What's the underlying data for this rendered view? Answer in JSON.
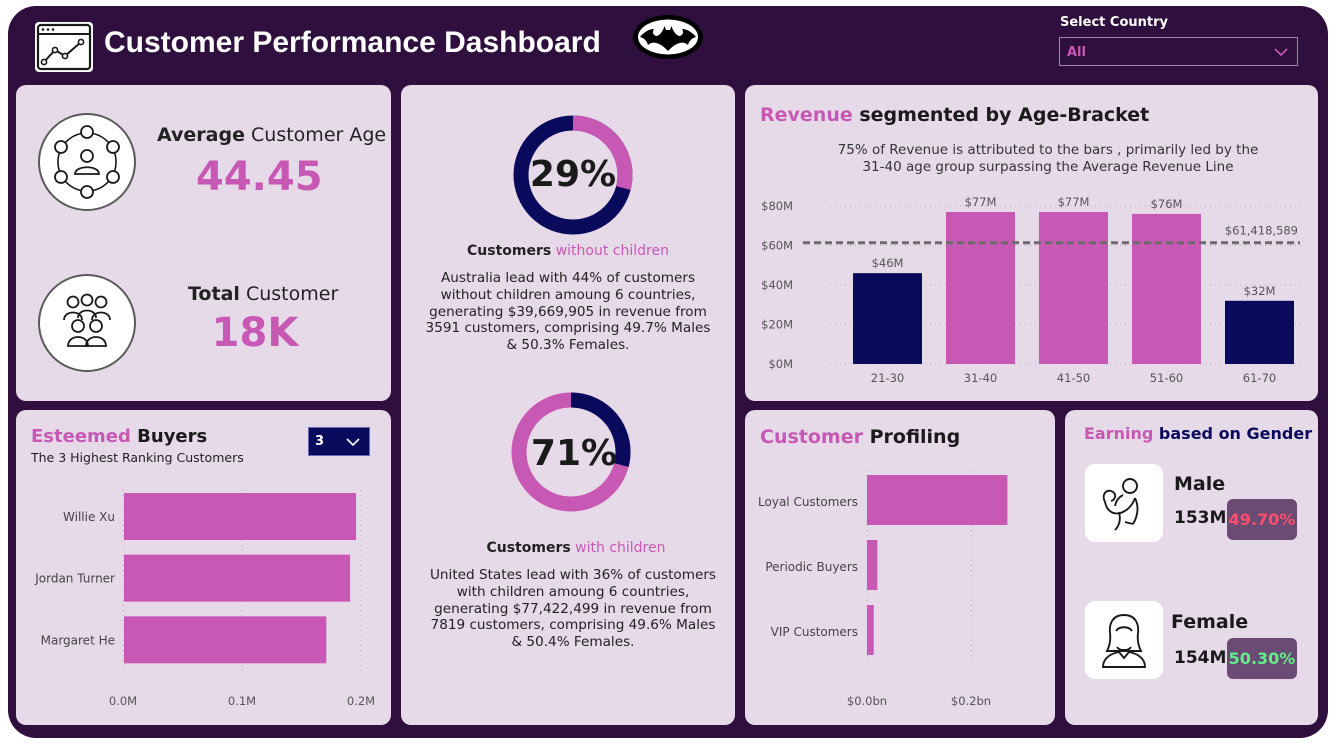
{
  "header": {
    "title": "Customer Performance Dashboard",
    "logo_icon": "line-chart-icon",
    "emblem_icon": "bat-logo-icon",
    "select_label": "Select Country",
    "select_value": "All"
  },
  "colors": {
    "background": "#2e0f3d",
    "card": "#e6d9e8",
    "pink": "#c759b5",
    "navy": "#0a0a5c"
  },
  "kpi": {
    "age": {
      "label_bold": "Average",
      "label_rest": " Customer Age",
      "value": "44.45",
      "icon": "network-people-icon"
    },
    "total": {
      "label_bold": "Total",
      "label_rest": " Customer",
      "value": "18K",
      "icon": "people-group-icon"
    }
  },
  "children": {
    "without": {
      "pct_label": "29%",
      "pct_value": 29,
      "title_bold": "Customers",
      "title_rest": " without children",
      "text": "Australia lead with 44% of customers without children amoung 6 countries, generating $39,669,905 in revenue from 3591 customers, comprising 49.7% Males & 50.3% Females."
    },
    "with": {
      "pct_label": "71%",
      "pct_value": 71,
      "title_bold": "Customers",
      "title_rest": " with children",
      "text": "United States lead with 36% of customers with children amoung 6 countries, generating $77,422,499 in revenue from 7819 customers, comprising 49.6% Males & 50.4% Females."
    }
  },
  "revenue": {
    "title_pink": "Revenue",
    "title_rest": " segmented by Age-Bracket",
    "note": "75% of Revenue is attributed to the bars , primarily led by the 31-40 age group surpassing the Average Revenue Line"
  },
  "buyers": {
    "title_pink": "Esteemed",
    "title_rest": " Buyers",
    "subtitle": "The 3 Highest Ranking Customers",
    "dropdown_value": "3"
  },
  "profiling": {
    "title_pink": "Customer",
    "title_rest": " Profiling"
  },
  "gender": {
    "title_pink": "Earning",
    "title_rest": " based on Gender",
    "male": {
      "label": "Male",
      "value": "153M",
      "pct": "49.70%",
      "pct_color": "#ff4f6e",
      "icon": "male-muscle-icon"
    },
    "female": {
      "label": "Female",
      "value": "154M",
      "pct": "50.30%",
      "pct_color": "#5ff08a",
      "icon": "female-avatar-icon"
    }
  },
  "chart_data": [
    {
      "type": "bar",
      "categories": [
        "21-30",
        "31-40",
        "41-50",
        "51-60",
        "61-70"
      ],
      "values": [
        46,
        77,
        77,
        76,
        32
      ],
      "data_labels": [
        "$46M",
        "$77M",
        "$77M",
        "$76M",
        "$32M"
      ],
      "colors": [
        "#0a0a5c",
        "#c759b5",
        "#c759b5",
        "#c759b5",
        "#0a0a5c"
      ],
      "yticks": [
        "$0M",
        "$20M",
        "$40M",
        "$60M",
        "$80M"
      ],
      "ylim": [
        0,
        80
      ],
      "reference_line": {
        "value": 61.418589,
        "label": "$61,418,589"
      },
      "title": "Revenue segmented by Age-Bracket",
      "grid": true
    },
    {
      "type": "bar",
      "orientation": "horizontal",
      "categories": [
        "Willie Xu",
        "Jordan Turner",
        "Margaret He"
      ],
      "values": [
        0.195,
        0.19,
        0.17
      ],
      "xticks": [
        "0.0M",
        "0.1M",
        "0.2M"
      ],
      "xlim": [
        0,
        0.2
      ],
      "title": "Esteemed Buyers",
      "grid": true
    },
    {
      "type": "bar",
      "orientation": "horizontal",
      "categories": [
        "Loyal Customers",
        "Periodic Buyers",
        "VIP Customers"
      ],
      "values": [
        0.27,
        0.02,
        0.013
      ],
      "xticks": [
        "$0.0bn",
        "$0.2bn"
      ],
      "title": "Customer Profiling",
      "grid": true
    }
  ]
}
